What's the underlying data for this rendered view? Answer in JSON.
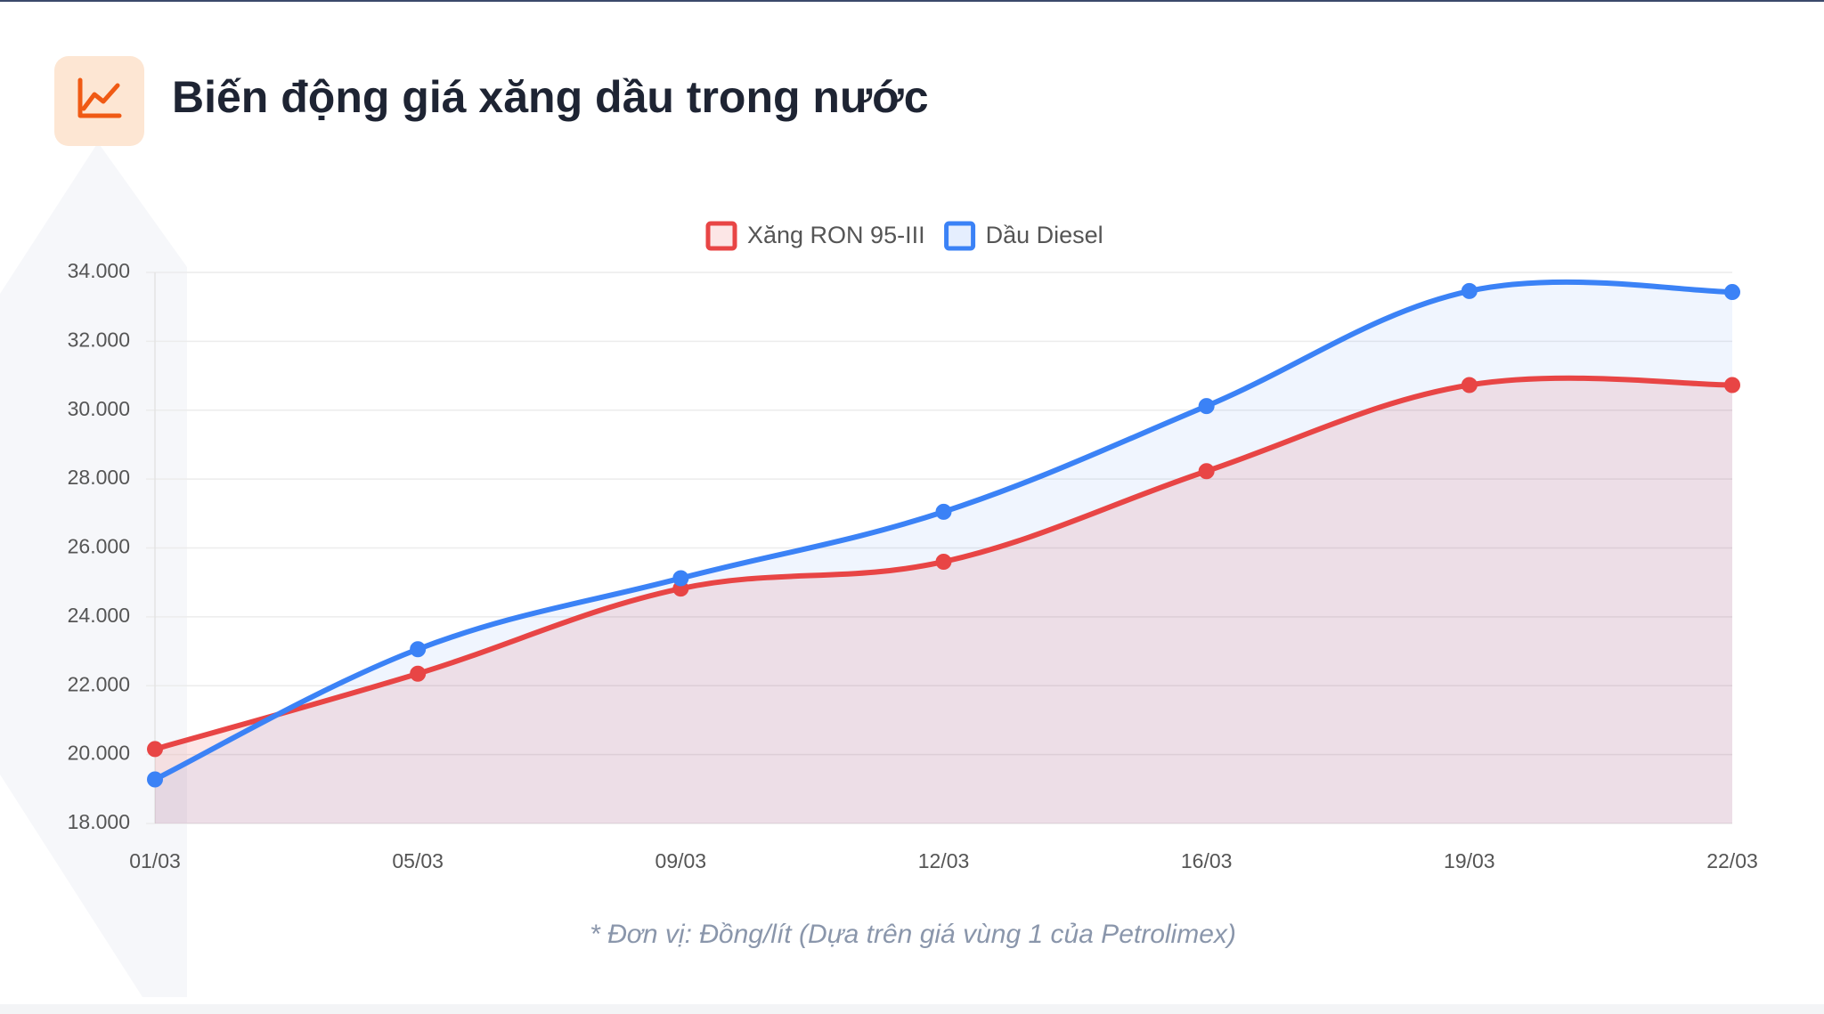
{
  "chart_data": {
    "type": "line",
    "title": "Biến động giá xăng dầu trong nước",
    "categories": [
      "01/03",
      "05/03",
      "09/03",
      "12/03",
      "16/03",
      "19/03",
      "22/03"
    ],
    "series": [
      {
        "name": "Xăng RON 95-III",
        "color": "#e84545",
        "values": [
          20160,
          22350,
          24820,
          25600,
          28230,
          30730,
          30730
        ]
      },
      {
        "name": "Dầu Diesel",
        "color": "#3b82f6",
        "values": [
          19280,
          23060,
          25120,
          27050,
          30120,
          33460,
          33430
        ]
      }
    ],
    "ylim": [
      18000,
      34000
    ],
    "yticks": [
      {
        "value": 18000,
        "label": "18.000"
      },
      {
        "value": 20000,
        "label": "20.000"
      },
      {
        "value": 22000,
        "label": "22.000"
      },
      {
        "value": 24000,
        "label": "24.000"
      },
      {
        "value": 26000,
        "label": "26.000"
      },
      {
        "value": 28000,
        "label": "28.000"
      },
      {
        "value": 30000,
        "label": "30.000"
      },
      {
        "value": 32000,
        "label": "32.000"
      },
      {
        "value": 34000,
        "label": "34.000"
      }
    ],
    "grid": true,
    "fill": true,
    "legend": "top",
    "caption": "* Đơn vị: Đồng/lít (Dựa trên giá vùng 1 của Petrolimex)"
  }
}
